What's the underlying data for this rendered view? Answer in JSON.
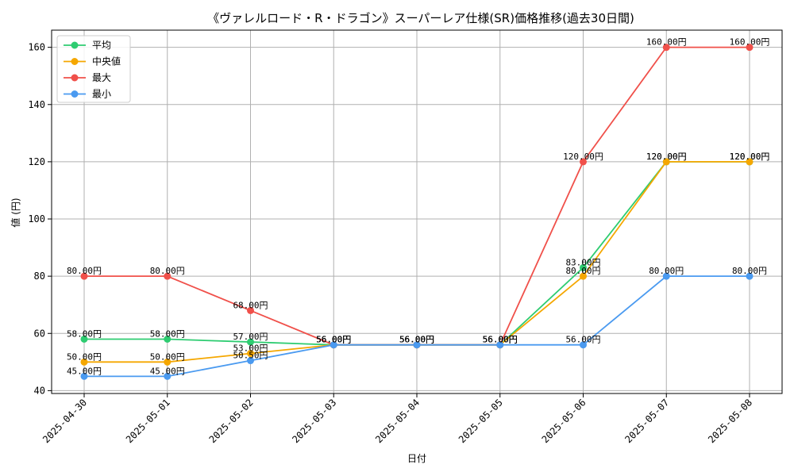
{
  "chart_data": {
    "type": "line",
    "title": "《ヴァレルロード・R・ドラゴン》スーパーレア仕様(SR)価格推移(過去30日間)",
    "xlabel": "日付",
    "ylabel": "値 (円)",
    "categories": [
      "2025-04-30",
      "2025-05-01",
      "2025-05-02",
      "2025-05-03",
      "2025-05-04",
      "2025-05-05",
      "2025-05-06",
      "2025-05-07",
      "2025-05-08"
    ],
    "ylim": [
      39,
      166
    ],
    "yticks": [
      40,
      60,
      80,
      100,
      120,
      140,
      160
    ],
    "grid": true,
    "legend_position": "top-left",
    "value_suffix": "円",
    "series": [
      {
        "name": "平均",
        "color": "#2ecc71",
        "values": [
          58,
          58,
          57,
          56,
          56,
          56,
          83,
          120,
          120
        ]
      },
      {
        "name": "中央値",
        "color": "#f5a700",
        "values": [
          50,
          50,
          53,
          56,
          56,
          56,
          80,
          120,
          120
        ]
      },
      {
        "name": "最大",
        "color": "#f0504a",
        "values": [
          80,
          80,
          68,
          56,
          56,
          56,
          120,
          160,
          160
        ]
      },
      {
        "name": "最小",
        "color": "#4a9af0",
        "values": [
          45,
          45,
          50.5,
          56,
          56,
          56,
          56,
          80,
          80
        ]
      }
    ]
  }
}
